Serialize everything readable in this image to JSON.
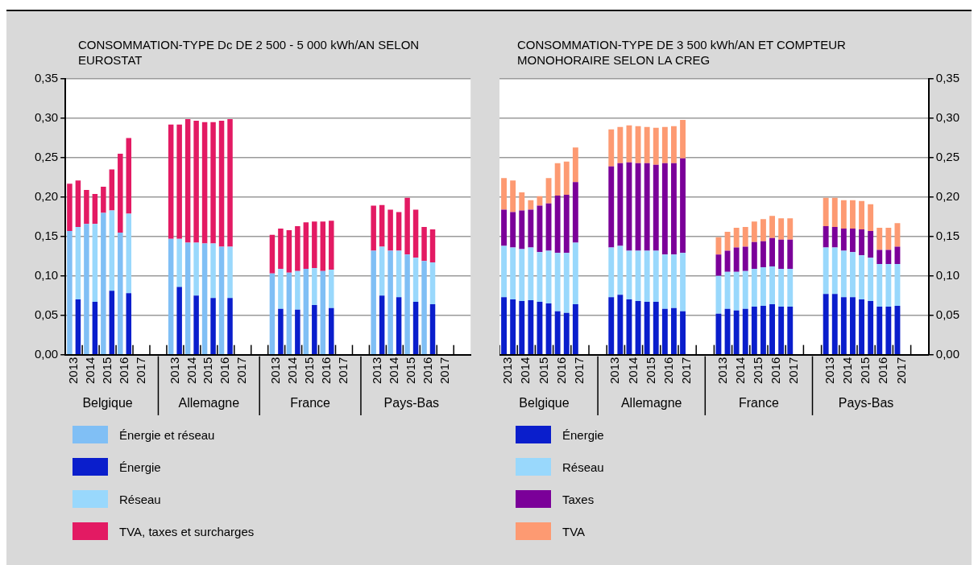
{
  "chart_data": [
    {
      "type": "bar",
      "stacked": true,
      "title": "CONSOMMATION-TYPE Dc DE 2 500 - 5 000 kWh/AN SELON EUROSTAT",
      "categories": [
        "2013",
        null,
        "2014",
        null,
        "2015",
        null,
        "2016",
        null,
        "2017",
        null,
        null,
        null,
        "2013",
        null,
        "2014",
        null,
        "2015",
        null,
        "2016",
        null,
        "2017",
        null,
        null,
        null,
        "2013",
        null,
        "2014",
        null,
        "2015",
        null,
        "2016",
        null,
        "2017",
        null,
        null,
        null,
        "2013",
        null,
        "2014",
        null,
        "2015",
        null,
        "2016",
        null,
        "2017",
        null,
        null,
        null
      ],
      "series": [
        {
          "name": "Énergie et réseau",
          "color": "#80bff5",
          "values": [
            0.157,
            null,
            0.166,
            null,
            0.18,
            null,
            0.155,
            null,
            null,
            null,
            null,
            null,
            0.147,
            null,
            0.142,
            null,
            0.141,
            null,
            0.137,
            null,
            null,
            null,
            null,
            null,
            0.103,
            null,
            0.104,
            null,
            0.109,
            null,
            0.106,
            null,
            null,
            null,
            null,
            null,
            0.132,
            null,
            0.132,
            null,
            0.127,
            null,
            0.119,
            null,
            null,
            null,
            null,
            null
          ]
        },
        {
          "name": "Énergie",
          "color": "#0a1ecc",
          "values": [
            null,
            0.07,
            null,
            0.067,
            null,
            0.081,
            null,
            0.078,
            null,
            null,
            null,
            null,
            null,
            0.086,
            null,
            0.075,
            null,
            0.072,
            null,
            0.072,
            null,
            null,
            null,
            null,
            null,
            0.058,
            null,
            0.057,
            null,
            0.063,
            null,
            0.059,
            null,
            null,
            null,
            null,
            null,
            0.075,
            null,
            0.073,
            null,
            0.067,
            null,
            0.064,
            null,
            null,
            null,
            null
          ]
        },
        {
          "name": "Réseau",
          "color": "#99d8fc",
          "values": [
            null,
            0.092,
            null,
            0.099,
            null,
            0.102,
            null,
            0.101,
            null,
            null,
            null,
            null,
            null,
            0.061,
            null,
            0.067,
            null,
            0.069,
            null,
            0.065,
            null,
            null,
            null,
            null,
            null,
            0.051,
            null,
            0.049,
            null,
            0.047,
            null,
            0.049,
            null,
            null,
            null,
            null,
            null,
            0.062,
            null,
            0.059,
            null,
            0.056,
            null,
            0.053,
            null,
            null,
            null,
            null
          ]
        },
        {
          "name": "TVA, taxes et surcharges",
          "color": "#e31a63",
          "values": [
            0.06,
            0.059,
            0.043,
            0.038,
            0.033,
            0.052,
            0.1,
            0.096,
            null,
            null,
            null,
            null,
            0.145,
            0.145,
            0.157,
            0.155,
            0.154,
            0.154,
            0.16,
            0.162,
            null,
            null,
            null,
            null,
            0.049,
            0.051,
            0.054,
            0.057,
            0.059,
            0.059,
            0.063,
            0.062,
            null,
            null,
            null,
            null,
            0.057,
            0.053,
            0.052,
            0.049,
            0.072,
            0.061,
            0.043,
            0.042,
            null,
            null,
            null,
            null
          ]
        }
      ],
      "ylim": [
        0,
        0.35
      ],
      "yticks": [
        {
          "value": 0,
          "label": "0,00"
        },
        {
          "value": 0.05,
          "label": "0,05"
        },
        {
          "value": 0.1,
          "label": "0,10"
        },
        {
          "value": 0.15,
          "label": "0,15"
        },
        {
          "value": 0.2,
          "label": "0,20"
        },
        {
          "value": 0.25,
          "label": "0,25"
        },
        {
          "value": 0.3,
          "label": "0,30"
        },
        {
          "value": 0.35,
          "label": "0,35"
        }
      ],
      "grid": "y",
      "legend": "bottom left",
      "annotations": [
        "Belgique",
        "Allemagne",
        "France",
        "Pays-Bas"
      ]
    },
    {
      "type": "bar",
      "stacked": true,
      "title": "CONSOMMATION-TYPE DE 3 500 kWh/AN ET COMPTEUR MONOHORAIRE SELON LA CREG",
      "categories": [
        "2013",
        null,
        "2014",
        null,
        "2015",
        null,
        "2016",
        null,
        "2017",
        null,
        null,
        null,
        "2013",
        null,
        "2014",
        null,
        "2015",
        null,
        "2016",
        null,
        "2017",
        null,
        null,
        null,
        "2013",
        null,
        "2014",
        null,
        "2015",
        null,
        "2016",
        null,
        "2017",
        null,
        null,
        null,
        "2013",
        null,
        "2014",
        null,
        "2015",
        null,
        "2016",
        null,
        "2017",
        null,
        null,
        null
      ],
      "series": [
        {
          "name": "Énergie",
          "color": "#0a1ecc",
          "axis": "y2",
          "values": [
            0.073,
            0.07,
            0.068,
            0.069,
            0.067,
            0.065,
            0.055,
            0.053,
            0.064,
            null,
            null,
            null,
            0.073,
            0.076,
            0.07,
            0.068,
            0.067,
            0.067,
            0.058,
            0.059,
            0.055,
            null,
            null,
            null,
            0.052,
            0.058,
            0.056,
            0.058,
            0.061,
            0.062,
            0.064,
            0.061,
            0.061,
            null,
            null,
            null,
            0.077,
            0.077,
            0.073,
            0.073,
            0.07,
            0.068,
            0.061,
            0.061,
            0.062,
            null,
            null,
            null
          ]
        },
        {
          "name": "Réseau",
          "color": "#99d8fc",
          "axis": "y2",
          "values": [
            0.065,
            0.066,
            0.066,
            0.067,
            0.063,
            0.067,
            0.074,
            0.076,
            0.078,
            null,
            null,
            null,
            0.063,
            0.062,
            0.062,
            0.064,
            0.065,
            0.065,
            0.069,
            0.068,
            0.074,
            null,
            null,
            null,
            0.048,
            0.047,
            0.049,
            0.048,
            0.048,
            0.049,
            0.048,
            0.048,
            0.048,
            null,
            null,
            null,
            0.059,
            0.059,
            0.059,
            0.057,
            0.056,
            0.055,
            0.054,
            0.054,
            0.053,
            null,
            null,
            null
          ]
        },
        {
          "name": "Taxes",
          "color": "#7b0099",
          "axis": "y2",
          "values": [
            0.046,
            0.045,
            0.049,
            0.048,
            0.059,
            0.06,
            0.073,
            0.074,
            0.077,
            null,
            null,
            null,
            0.103,
            0.105,
            0.112,
            0.111,
            0.111,
            0.109,
            0.116,
            0.116,
            0.12,
            null,
            null,
            null,
            0.027,
            0.027,
            0.031,
            0.031,
            0.034,
            0.033,
            0.036,
            0.037,
            0.037,
            null,
            null,
            null,
            0.027,
            0.026,
            0.028,
            0.03,
            0.033,
            0.034,
            0.018,
            0.018,
            0.022,
            null,
            null,
            null
          ]
        },
        {
          "name": "TVA",
          "color": "#fd9a72",
          "axis": "y2",
          "values": [
            0.04,
            0.04,
            0.023,
            0.012,
            0.012,
            0.032,
            0.041,
            0.042,
            0.044,
            null,
            null,
            null,
            0.047,
            0.046,
            0.047,
            0.047,
            0.046,
            0.047,
            0.046,
            0.047,
            0.049,
            null,
            null,
            null,
            0.022,
            0.024,
            0.025,
            0.025,
            0.026,
            0.028,
            0.028,
            0.027,
            0.027,
            null,
            null,
            null,
            0.036,
            0.037,
            0.036,
            0.036,
            0.036,
            0.034,
            0.028,
            0.028,
            0.03,
            null,
            null,
            null
          ]
        }
      ],
      "y2lim": [
        0,
        0.35
      ],
      "y2ticks": [
        {
          "value": 0,
          "label": "0,00"
        },
        {
          "value": 0.05,
          "label": "0,05"
        },
        {
          "value": 0.1,
          "label": "0,10"
        },
        {
          "value": 0.15,
          "label": "0,15"
        },
        {
          "value": 0.2,
          "label": "0,20"
        },
        {
          "value": 0.25,
          "label": "0,25"
        },
        {
          "value": 0.3,
          "label": "0,30"
        },
        {
          "value": 0.35,
          "label": "0,35"
        }
      ],
      "grid": "y",
      "legend": "bottom left",
      "annotations": [
        "Belgique",
        "Allemagne",
        "France",
        "Pays-Bas"
      ]
    }
  ]
}
